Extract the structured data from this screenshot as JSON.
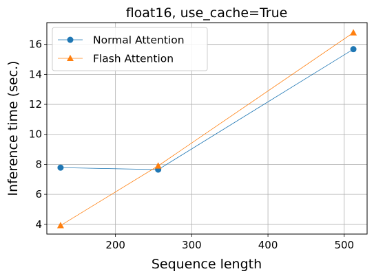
{
  "chart_data": {
    "type": "line",
    "title": "float16, use_cache=True",
    "xlabel": "Sequence length",
    "ylabel": "Inference time (sec.)",
    "xlim": [
      110,
      530
    ],
    "ylim": [
      3.35,
      17.45
    ],
    "xticks": [
      200,
      300,
      400,
      500
    ],
    "yticks": [
      4,
      6,
      8,
      10,
      12,
      14,
      16
    ],
    "grid": true,
    "legend_position": "top-left",
    "series": [
      {
        "name": "Normal Attention",
        "color": "#1f77b4",
        "marker": "circle",
        "x": [
          128,
          256,
          512
        ],
        "y": [
          7.78,
          7.65,
          15.68
        ]
      },
      {
        "name": "Flash Attention",
        "color": "#ff7f0e",
        "marker": "triangle",
        "x": [
          128,
          256,
          512
        ],
        "y": [
          3.92,
          7.9,
          16.78
        ]
      }
    ]
  }
}
